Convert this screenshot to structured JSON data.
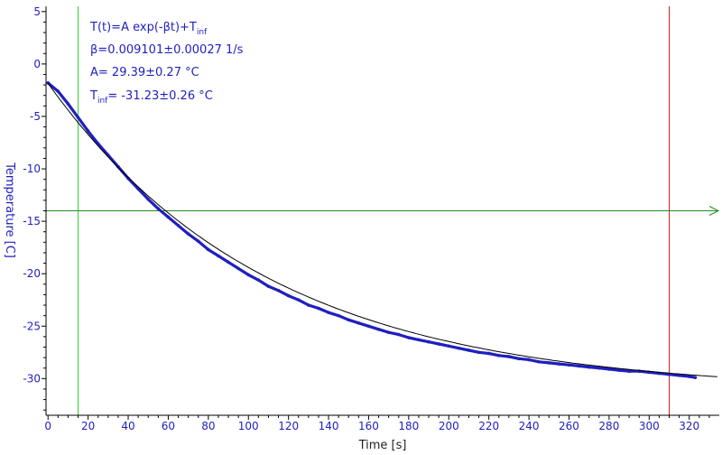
{
  "chart_data": {
    "type": "scatter",
    "xlabel": "Time [s]",
    "ylabel": "Temperature [C]",
    "xlim": [
      -1,
      335
    ],
    "ylim": [
      -33.5,
      5.5
    ],
    "xticks": [
      0,
      20,
      40,
      60,
      80,
      100,
      120,
      140,
      160,
      180,
      200,
      220,
      240,
      260,
      280,
      300,
      320
    ],
    "yticks": [
      5,
      0,
      -5,
      -10,
      -15,
      -20,
      -25,
      -30
    ],
    "grid": false,
    "annotation": {
      "line1_main": "T(t)=A exp(-βt)+T",
      "line1_sub": "inf",
      "line2": "β=0.009101±0.00027 1/s",
      "line3": "A= 29.39±0.27 °C",
      "line4_main": "T",
      "line4_sub": "inf",
      "line4_rest": "= -31.23±0.26 °C"
    },
    "fit": {
      "A": 29.39,
      "beta": 0.009101,
      "T_inf": -31.23
    },
    "markers": {
      "vertical_green_x": 15,
      "vertical_red_x": 310,
      "horizontal_y": -14
    },
    "series": [
      {
        "x": [
          0,
          5,
          10,
          15,
          20,
          25,
          30,
          35,
          40,
          45,
          50,
          55,
          60,
          65,
          70,
          75,
          80,
          85,
          90,
          95,
          100,
          105,
          110,
          115,
          120,
          125,
          130,
          135,
          140,
          145,
          150,
          155,
          160,
          165,
          170,
          175,
          180,
          185,
          190,
          195,
          200,
          205,
          210,
          215,
          220,
          225,
          230,
          235,
          240,
          245,
          250,
          255,
          260,
          265,
          270,
          275,
          280,
          285,
          290,
          295,
          300,
          305,
          310,
          315,
          320,
          323
        ],
        "values": [
          -1.8,
          -2.6,
          -3.8,
          -5.1,
          -6.4,
          -7.6,
          -8.7,
          -9.8,
          -10.9,
          -11.9,
          -12.9,
          -13.8,
          -14.6,
          -15.4,
          -16.2,
          -16.9,
          -17.7,
          -18.3,
          -18.9,
          -19.5,
          -20.1,
          -20.6,
          -21.2,
          -21.6,
          -22.1,
          -22.5,
          -23.0,
          -23.3,
          -23.7,
          -24.0,
          -24.4,
          -24.7,
          -25.0,
          -25.3,
          -25.6,
          -25.8,
          -26.1,
          -26.3,
          -26.5,
          -26.7,
          -26.9,
          -27.1,
          -27.3,
          -27.5,
          -27.6,
          -27.8,
          -27.9,
          -28.1,
          -28.2,
          -28.4,
          -28.5,
          -28.6,
          -28.7,
          -28.8,
          -28.9,
          -29.0,
          -29.1,
          -29.2,
          -29.3,
          -29.3,
          -29.4,
          -29.5,
          -29.6,
          -29.7,
          -29.8,
          -29.9
        ]
      }
    ],
    "colors": {
      "data": "#1f1fbf",
      "fit_line": "#000000",
      "left_marker": "#33cc33",
      "right_marker": "#cc2222",
      "horizontal_marker": "#228b22",
      "label_color": "#1f1fbf"
    }
  }
}
